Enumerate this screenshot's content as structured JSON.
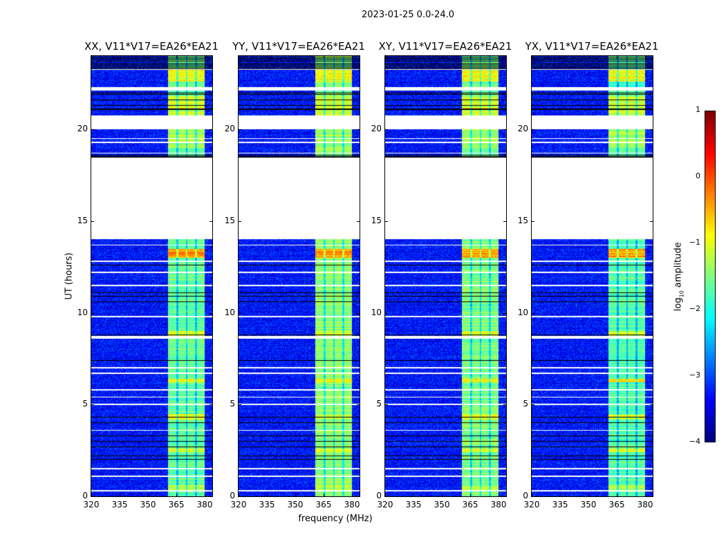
{
  "suptitle": "2023-01-25 0.0-24.0",
  "chart_data": {
    "type": "heatmap",
    "xlabel": "frequency (MHz)",
    "ylabel": "UT (hours)",
    "xlim": [
      320,
      384
    ],
    "ylim": [
      0,
      24
    ],
    "xticks": [
      320,
      335,
      350,
      365,
      380
    ],
    "yticks": [
      0,
      5,
      10,
      15,
      20
    ],
    "panels": [
      {
        "title": "XX, V11*V17=EA26*EA21",
        "rfi_level": -1.6
      },
      {
        "title": "YY, V11*V17=EA26*EA21",
        "rfi_level": -1.4
      },
      {
        "title": "XY, V11*V17=EA26*EA21",
        "rfi_level": -1.5
      },
      {
        "title": "YX, V11*V17=EA26*EA21",
        "rfi_level": -1.7
      }
    ],
    "background_level": -3.3,
    "rfi_band_mhz": [
      360.5,
      380
    ],
    "rfi_subband_gaps_mhz": [
      365.5,
      370.5,
      375.5
    ],
    "bright_intervals_hours": [
      [
        13.0,
        13.5,
        -0.4
      ],
      [
        22.6,
        23.3,
        -0.9
      ],
      [
        19.0,
        20.0,
        -1.3
      ],
      [
        20.75,
        21.8,
        -1.1
      ],
      [
        0.3,
        0.6,
        -1.2
      ],
      [
        2.4,
        2.6,
        -1.0
      ],
      [
        4.2,
        4.5,
        -1.0
      ],
      [
        6.2,
        6.4,
        -0.8
      ],
      [
        8.7,
        9.0,
        -1.0
      ]
    ],
    "flagged_intervals_hours": [
      [
        14.0,
        18.45
      ],
      [
        20.0,
        20.75
      ],
      [
        0.25,
        0.35
      ],
      [
        8.6,
        8.75
      ],
      [
        22.1,
        22.3
      ],
      [
        23.25,
        23.3
      ]
    ],
    "colorbar": {
      "label_prefix": "log",
      "label_sub": "10",
      "label_suffix": " amplitude",
      "range": [
        -4,
        1
      ],
      "ticks": [
        "1",
        "0",
        "−1",
        "−2",
        "−3",
        "−4"
      ],
      "colormap": "jet"
    }
  }
}
